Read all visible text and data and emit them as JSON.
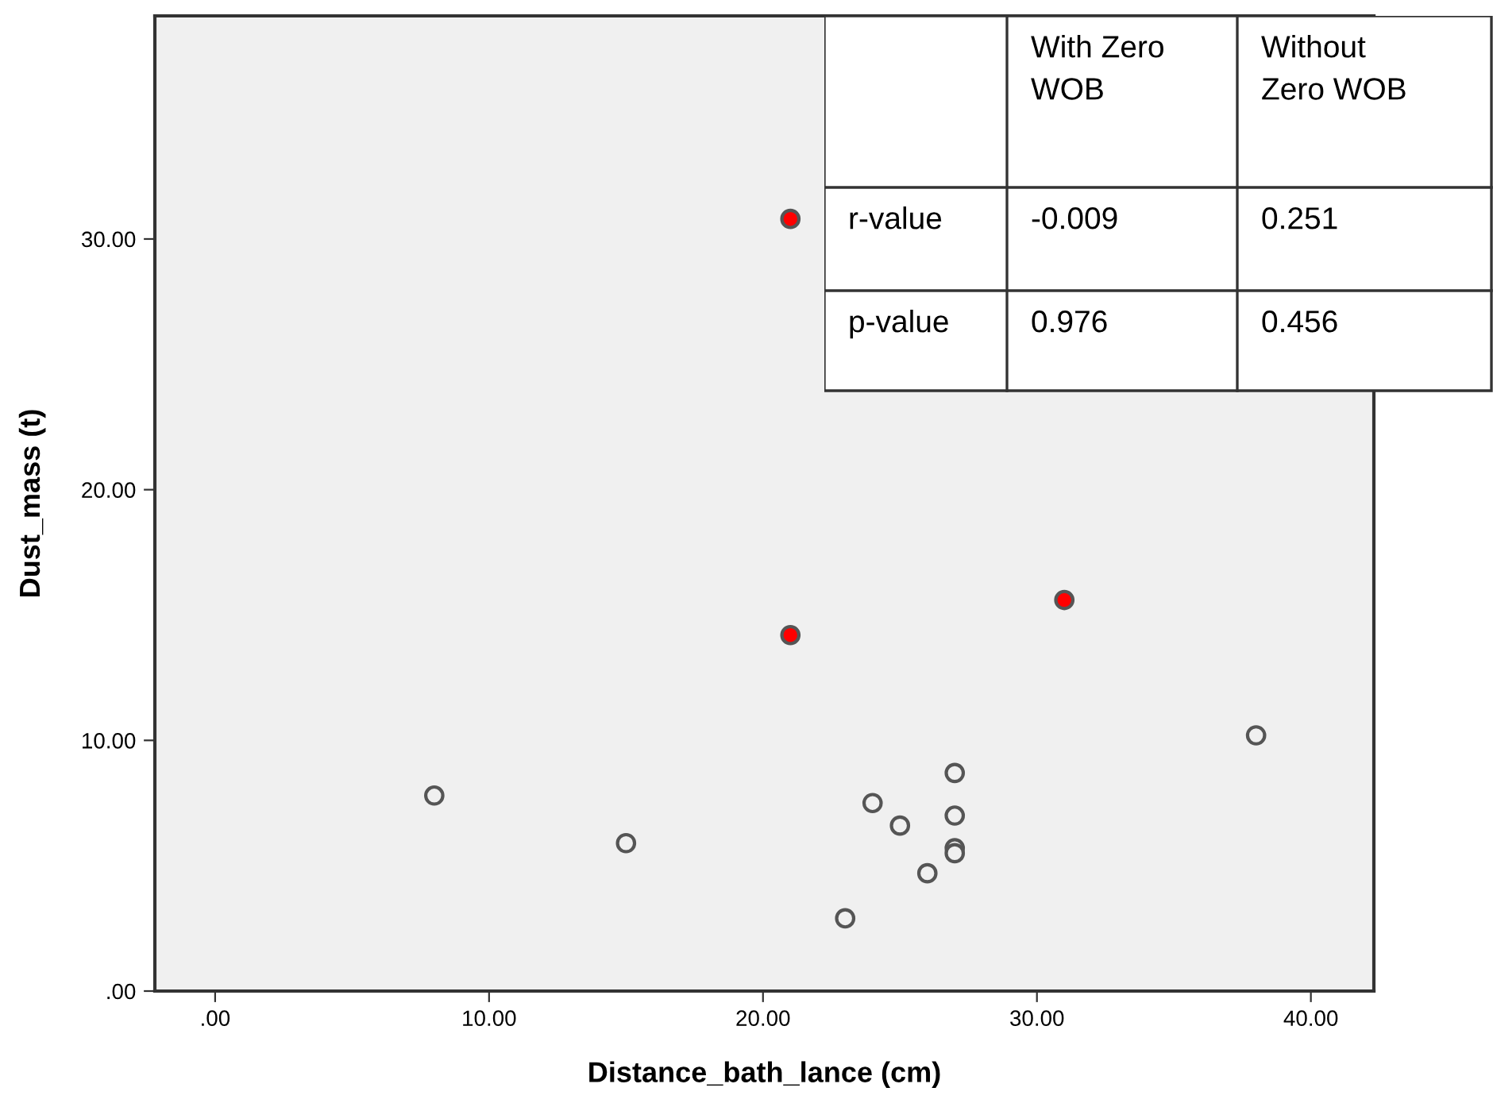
{
  "chart_data": {
    "type": "scatter",
    "xlabel": "Distance_bath_lance (cm)",
    "ylabel": "Dust_mass (t)",
    "xlim": [
      -2.2,
      42.3
    ],
    "ylim": [
      0,
      38.9
    ],
    "xticks": [
      {
        "value": 0,
        "label": ".00"
      },
      {
        "value": 10,
        "label": "10.00"
      },
      {
        "value": 20,
        "label": "20.00"
      },
      {
        "value": 30,
        "label": "30.00"
      },
      {
        "value": 40,
        "label": "40.00"
      }
    ],
    "yticks": [
      {
        "value": 0,
        "label": ".00"
      },
      {
        "value": 10,
        "label": "10.00"
      },
      {
        "value": 20,
        "label": "20.00"
      },
      {
        "value": 30,
        "label": "30.00"
      }
    ],
    "marker": "circle",
    "grid": false,
    "series": [
      {
        "color": "#f0f0f0",
        "x": [
          8,
          15,
          23,
          24,
          25,
          26,
          27,
          27,
          27,
          27,
          38
        ],
        "values": [
          7.8,
          5.9,
          2.9,
          7.5,
          6.6,
          4.7,
          8.7,
          7.0,
          5.7,
          5.5,
          10.2
        ]
      },
      {
        "color": "#ff0000",
        "x": [
          21,
          21,
          31
        ],
        "values": [
          30.8,
          14.2,
          15.6
        ]
      }
    ],
    "annotations": [
      "With Zero\nWOB",
      "Without\nZero WOB",
      "r-value",
      "-0.009",
      "0.251",
      "p-value",
      "0.976",
      "0.456"
    ]
  }
}
